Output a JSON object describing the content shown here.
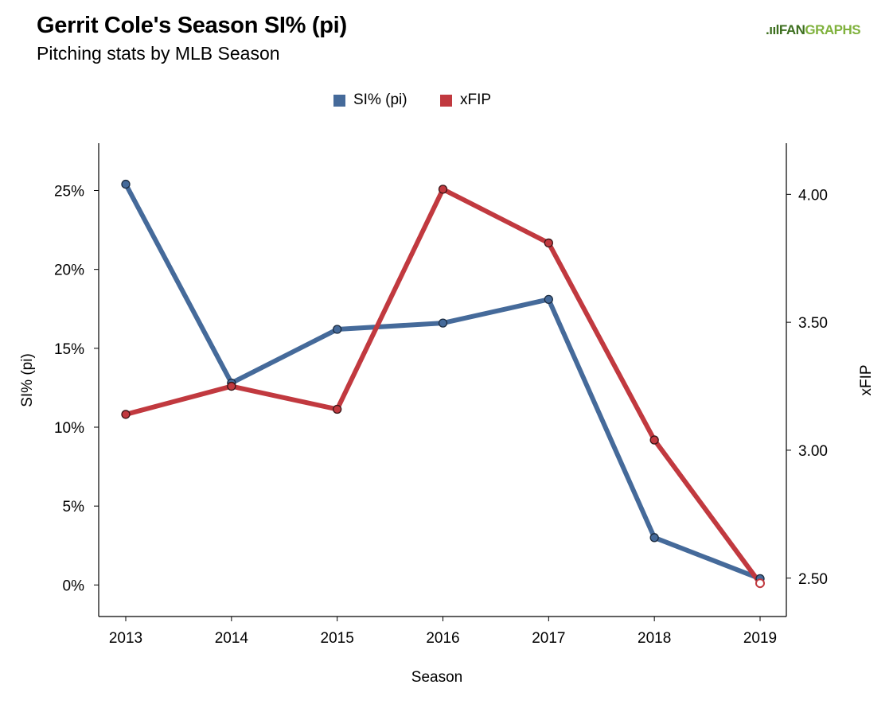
{
  "header": {
    "title": "Gerrit Cole's Season SI% (pi)",
    "subtitle": "Pitching stats by MLB Season",
    "brand_prefix": ".ııl",
    "brand_fan": "FAN",
    "brand_graphs": "GRAPHS"
  },
  "colors": {
    "si_series": "#456a9a",
    "xfip_series": "#c1393f",
    "brand_dark": "#3d6f1f",
    "brand_light": "#7fb13c"
  },
  "chart_data": {
    "type": "line",
    "title": "Gerrit Cole's Season SI% (pi)",
    "subtitle": "Pitching stats by MLB Season",
    "xlabel": "Season",
    "ylabel_left": "SI% (pi)",
    "ylabel_right": "xFIP",
    "categories": [
      "2013",
      "2014",
      "2015",
      "2016",
      "2017",
      "2018",
      "2019"
    ],
    "y_left_ticks": [
      "0%",
      "5%",
      "10%",
      "15%",
      "20%",
      "25%"
    ],
    "y_left_tick_values": [
      0,
      5,
      10,
      15,
      20,
      25
    ],
    "y_left_range": [
      -2,
      28
    ],
    "y_right_ticks": [
      "2.50",
      "3.00",
      "3.50",
      "4.00"
    ],
    "y_right_tick_values": [
      2.5,
      3.0,
      3.5,
      4.0
    ],
    "y_right_range": [
      2.35,
      4.2
    ],
    "legend_position": "top-center",
    "grid": false,
    "series": [
      {
        "name": "SI% (pi)",
        "axis": "left",
        "values": [
          25.4,
          12.8,
          16.2,
          16.6,
          18.1,
          3.0,
          0.4
        ]
      },
      {
        "name": "xFIP",
        "axis": "right",
        "values": [
          3.14,
          3.25,
          3.16,
          4.02,
          3.81,
          3.04,
          2.48
        ]
      }
    ],
    "annotations": [
      "2019 xFIP point drawn as hollow marker"
    ]
  }
}
